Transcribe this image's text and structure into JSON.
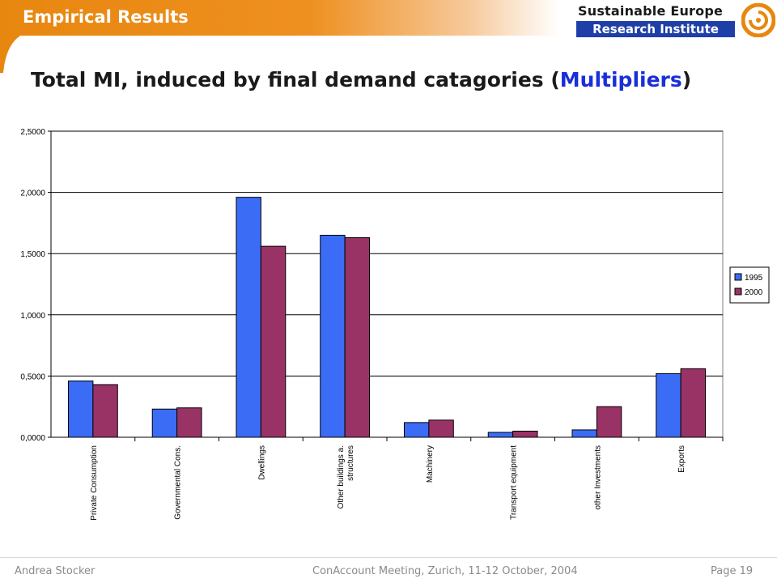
{
  "header": {
    "section_title": "Empirical Results",
    "logo_line1": "Sustainable Europe",
    "logo_line2": "Research Institute"
  },
  "slide": {
    "title_prefix": "Total MI, induced by final demand catagories (",
    "title_highlight": "Multipliers",
    "title_suffix": ")"
  },
  "colors": {
    "series_1995": "#3b6cf5",
    "series_2000": "#993366",
    "header_orange": "#e8870f",
    "title_blue": "#1a2fd8"
  },
  "chart_data": {
    "type": "bar",
    "categories": [
      "Private Consumption",
      "Governmental Cons.",
      "Dwellings",
      "Other buildings a. structures",
      "Machinery",
      "Transport equipment",
      "other Investments",
      "Exports"
    ],
    "series": [
      {
        "name": "1995",
        "values": [
          0.46,
          0.23,
          1.96,
          1.65,
          0.12,
          0.04,
          0.06,
          0.52
        ]
      },
      {
        "name": "2000",
        "values": [
          0.43,
          0.24,
          1.56,
          1.63,
          0.14,
          0.05,
          0.25,
          0.56
        ]
      }
    ],
    "y_ticks": [
      "0,0000",
      "0,5000",
      "1,0000",
      "1,5000",
      "2,0000",
      "2,5000"
    ],
    "ylim": [
      0,
      2.5
    ],
    "grid": true,
    "legend": "right"
  },
  "footer": {
    "author": "Andrea Stocker",
    "event": "ConAccount Meeting, Zurich, 11-12 October, 2004",
    "page": "Page 19"
  }
}
